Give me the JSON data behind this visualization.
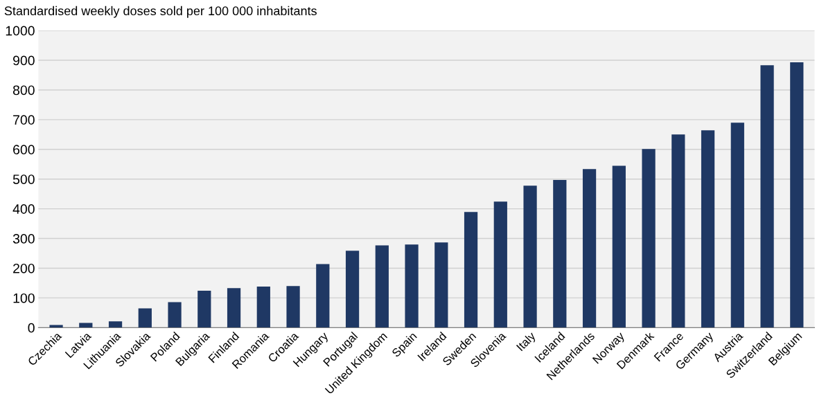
{
  "chart_data": {
    "type": "bar",
    "title": "Standardised weekly doses sold per 100 000 inhabitants",
    "categories": [
      "Czechia",
      "Latvia",
      "Lithuania",
      "Slovakia",
      "Poland",
      "Bulgaria",
      "Finland",
      "Romania",
      "Croatia",
      "Hungary",
      "Portugal",
      "United Kingdom",
      "Spain",
      "Ireland",
      "Sweden",
      "Slovenia",
      "Italy",
      "Iceland",
      "Netherlands",
      "Norway",
      "Denmark",
      "France",
      "Germany",
      "Austria",
      "Switzerland",
      "Belgium"
    ],
    "values": [
      9,
      16,
      21,
      65,
      86,
      124,
      133,
      138,
      140,
      214,
      259,
      277,
      280,
      287,
      389,
      424,
      478,
      497,
      534,
      545,
      601,
      650,
      664,
      690,
      883,
      893
    ],
    "color": "#1f3864",
    "ylim": [
      0,
      1000
    ],
    "yticks": [
      0,
      100,
      200,
      300,
      400,
      500,
      600,
      700,
      800,
      900,
      1000
    ],
    "grid": "y"
  }
}
